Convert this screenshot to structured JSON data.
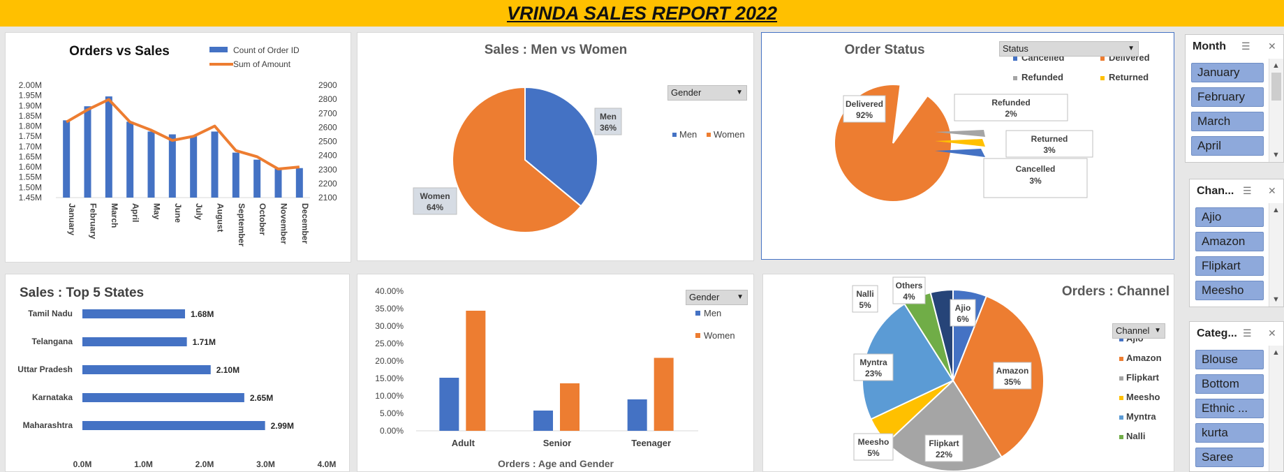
{
  "report": {
    "title": "VRINDA SALES REPORT 2022"
  },
  "orders_vs_sales": {
    "chart_data": {
      "type": "bar",
      "title": "Orders vs Sales",
      "categories": [
        "January",
        "February",
        "March",
        "April",
        "May",
        "June",
        "July",
        "August",
        "September",
        "October",
        "November",
        "December"
      ],
      "series": [
        {
          "name": "Count of Order ID",
          "type": "bar",
          "axis": "right",
          "values": [
            2650,
            2750,
            2820,
            2640,
            2570,
            2550,
            2540,
            2570,
            2420,
            2370,
            2310,
            2310
          ]
        },
        {
          "name": "Sum of Amount",
          "type": "line",
          "axis": "left",
          "values": [
            1.82,
            1.88,
            1.93,
            1.82,
            1.78,
            1.73,
            1.75,
            1.8,
            1.68,
            1.65,
            1.59,
            1.6
          ]
        }
      ],
      "y_left": {
        "ticks": [
          "2.00M",
          "1.95M",
          "1.90M",
          "1.85M",
          "1.80M",
          "1.75M",
          "1.70M",
          "1.65M",
          "1.60M",
          "1.55M",
          "1.50M",
          "1.45M"
        ],
        "range": [
          1.45,
          2.0
        ]
      },
      "y_right": {
        "ticks": [
          "2900",
          "2800",
          "2700",
          "2600",
          "2500",
          "2400",
          "2300",
          "2200",
          "2100"
        ],
        "range": [
          2100,
          2900
        ]
      },
      "legend": "top-right"
    }
  },
  "men_vs_women": {
    "filter_label": "Gender",
    "chart_data": {
      "type": "pie",
      "title": "Sales : Men vs Women",
      "slices": [
        {
          "name": "Men",
          "value": 36,
          "label": "36%",
          "color": "#4472c4"
        },
        {
          "name": "Women",
          "value": 64,
          "label": "64%",
          "color": "#ed7d31"
        }
      ],
      "legend": "right"
    }
  },
  "order_status": {
    "filter_label": "Status",
    "chart_data": {
      "type": "pie",
      "title": "Order Status",
      "slices": [
        {
          "name": "Delivered",
          "value": 92,
          "label": "92%",
          "color": "#ed7d31"
        },
        {
          "name": "Refunded",
          "value": 2,
          "label": "2%",
          "color": "#a5a5a5"
        },
        {
          "name": "Returned",
          "value": 3,
          "label": "3%",
          "color": "#ffc000"
        },
        {
          "name": "Cancelled",
          "value": 3,
          "label": "3%",
          "color": "#4472c4"
        }
      ],
      "legend_items": [
        {
          "name": "Cancelled",
          "color": "#4472c4"
        },
        {
          "name": "Delivered",
          "color": "#ed7d31"
        },
        {
          "name": "Refunded",
          "color": "#a5a5a5"
        },
        {
          "name": "Returned",
          "color": "#ffc000"
        }
      ],
      "legend": "top-right"
    }
  },
  "top_states": {
    "chart_data": {
      "type": "bar",
      "orientation": "horizontal",
      "title": "Sales : Top 5 States",
      "categories": [
        "Tamil Nadu",
        "Telangana",
        "Uttar Pradesh",
        "Karnataka",
        "Maharashtra"
      ],
      "values": [
        1.68,
        1.71,
        2.1,
        2.65,
        2.99
      ],
      "value_labels": [
        "1.68M",
        "1.71M",
        "2.10M",
        "2.65M",
        "2.99M"
      ],
      "x_ticks": [
        "0.0M",
        "1.0M",
        "2.0M",
        "3.0M",
        "4.0M"
      ],
      "xlim": [
        0,
        4
      ]
    }
  },
  "age_gender": {
    "filter_label": "Gender",
    "chart_data": {
      "type": "bar",
      "xlabel": "Orders : Age and Gender",
      "categories": [
        "Adult",
        "Senior",
        "Teenager"
      ],
      "series": [
        {
          "name": "Men",
          "color": "#4472c4",
          "values": [
            15.2,
            5.8,
            9.0
          ]
        },
        {
          "name": "Women",
          "color": "#ed7d31",
          "values": [
            34.4,
            13.6,
            20.9
          ]
        }
      ],
      "y_ticks": [
        "40.00%",
        "35.00%",
        "30.00%",
        "25.00%",
        "20.00%",
        "15.00%",
        "10.00%",
        "5.00%",
        "0.00%"
      ],
      "ylim": [
        0,
        40
      ],
      "legend": "top-right"
    }
  },
  "channel": {
    "filter_label": "Channel",
    "chart_data": {
      "type": "pie",
      "title": "Orders : Channel",
      "slices": [
        {
          "name": "Ajio",
          "value": 6,
          "label": "6%",
          "color": "#4472c4"
        },
        {
          "name": "Amazon",
          "value": 35,
          "label": "35%",
          "color": "#ed7d31"
        },
        {
          "name": "Flipkart",
          "value": 22,
          "label": "22%",
          "color": "#a5a5a5"
        },
        {
          "name": "Meesho",
          "value": 5,
          "label": "5%",
          "color": "#ffc000"
        },
        {
          "name": "Myntra",
          "value": 23,
          "label": "23%",
          "color": "#5b9bd5"
        },
        {
          "name": "Nalli",
          "value": 5,
          "label": "5%",
          "color": "#70ad47"
        },
        {
          "name": "Others",
          "value": 4,
          "label": "4%",
          "color": "#264478"
        }
      ],
      "legend_items": [
        "Ajio",
        "Amazon",
        "Flipkart",
        "Meesho",
        "Myntra",
        "Nalli"
      ],
      "legend": "right"
    }
  },
  "slicers": {
    "month": {
      "header": "Month",
      "items": [
        "January",
        "February",
        "March",
        "April"
      ]
    },
    "channel": {
      "header": "Chan...",
      "items": [
        "Ajio",
        "Amazon",
        "Flipkart",
        "Meesho"
      ]
    },
    "category": {
      "header": "Categ...",
      "items": [
        "Blouse",
        "Bottom",
        "Ethnic ...",
        "kurta",
        "Saree"
      ]
    }
  },
  "icons": [
    "multi-select-icon",
    "clear-filter-icon",
    "dropdown-arrow-icon",
    "scroll-up-icon",
    "scroll-down-icon"
  ]
}
